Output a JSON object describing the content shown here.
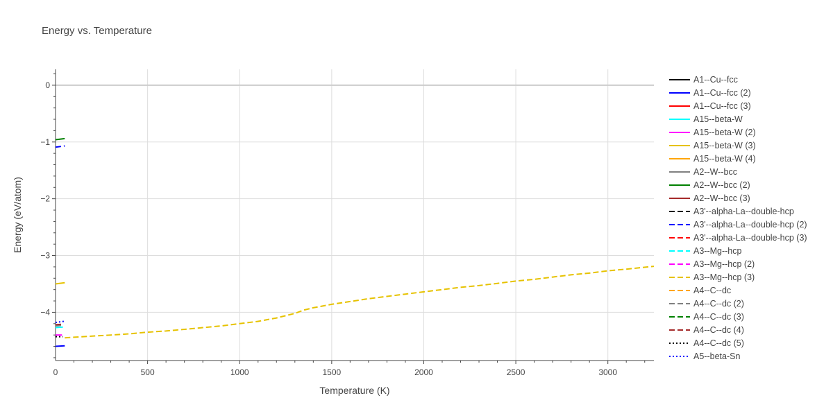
{
  "chart_data": {
    "type": "line",
    "title": "Energy vs. Temperature",
    "xlabel": "Temperature (K)",
    "ylabel": "Energy (eV/atom)",
    "xlim": [
      0,
      3250
    ],
    "ylim": [
      -4.85,
      0.28
    ],
    "xticks": [
      0,
      500,
      1000,
      1500,
      2000,
      2500,
      3000
    ],
    "yticks": [
      0,
      -1,
      -2,
      -3,
      -4
    ],
    "ytick_labels": [
      "0",
      "−1",
      "−2",
      "−3",
      "−4"
    ],
    "grid": true,
    "legend_position": "right",
    "series": [
      {
        "name": "A1--Cu--fcc",
        "color": "#000000",
        "dash": "solid",
        "x": [],
        "y": []
      },
      {
        "name": "A1--Cu--fcc (2)",
        "color": "#0000ff",
        "dash": "solid",
        "x": [
          0,
          50
        ],
        "y": [
          -4.6,
          -4.59
        ]
      },
      {
        "name": "A1--Cu--fcc (3)",
        "color": "#ff0000",
        "dash": "solid",
        "x": [],
        "y": []
      },
      {
        "name": "A15--beta-W",
        "color": "#00ffff",
        "dash": "solid",
        "x": [
          0,
          40
        ],
        "y": [
          -4.27,
          -4.26
        ]
      },
      {
        "name": "A15--beta-W (2)",
        "color": "#ff00ff",
        "dash": "solid",
        "x": [
          0,
          35
        ],
        "y": [
          -4.4,
          -4.4
        ]
      },
      {
        "name": "A15--beta-W (3)",
        "color": "#e6c200",
        "dash": "solid",
        "x": [
          0,
          50
        ],
        "y": [
          -3.5,
          -3.48
        ]
      },
      {
        "name": "A15--beta-W (4)",
        "color": "#ffa500",
        "dash": "solid",
        "x": [],
        "y": []
      },
      {
        "name": "A2--W--bcc",
        "color": "#808080",
        "dash": "solid",
        "x": [],
        "y": []
      },
      {
        "name": "A2--W--bcc (2)",
        "color": "#008000",
        "dash": "solid",
        "x": [
          0,
          50
        ],
        "y": [
          -0.96,
          -0.94
        ]
      },
      {
        "name": "A2--W--bcc (3)",
        "color": "#a52a2a",
        "dash": "solid",
        "x": [],
        "y": []
      },
      {
        "name": "A3'--alpha-La--double-hcp",
        "color": "#000000",
        "dash": "dash",
        "x": [],
        "y": []
      },
      {
        "name": "A3'--alpha-La--double-hcp (2)",
        "color": "#0000ff",
        "dash": "dash",
        "x": [
          0,
          50
        ],
        "y": [
          -1.09,
          -1.07
        ]
      },
      {
        "name": "A3'--alpha-La--double-hcp (3)",
        "color": "#ff0000",
        "dash": "dash",
        "x": [],
        "y": []
      },
      {
        "name": "A3--Mg--hcp",
        "color": "#00ffff",
        "dash": "dash",
        "x": [],
        "y": []
      },
      {
        "name": "A3--Mg--hcp (2)",
        "color": "#ff00ff",
        "dash": "dash",
        "x": [],
        "y": []
      },
      {
        "name": "A3--Mg--hcp (3)",
        "color": "#e6c200",
        "dash": "dash",
        "x": [
          50,
          100,
          200,
          300,
          400,
          500,
          600,
          700,
          800,
          900,
          1000,
          1100,
          1200,
          1300,
          1350,
          1400,
          1500,
          1600,
          1700,
          1800,
          1900,
          2000,
          2100,
          2200,
          2300,
          2400,
          2500,
          2600,
          2700,
          2800,
          2900,
          3000,
          3100,
          3250
        ],
        "y": [
          -4.45,
          -4.44,
          -4.42,
          -4.4,
          -4.38,
          -4.35,
          -4.33,
          -4.3,
          -4.27,
          -4.24,
          -4.2,
          -4.16,
          -4.1,
          -4.02,
          -3.96,
          -3.92,
          -3.86,
          -3.81,
          -3.76,
          -3.72,
          -3.68,
          -3.64,
          -3.6,
          -3.56,
          -3.53,
          -3.49,
          -3.45,
          -3.42,
          -3.38,
          -3.34,
          -3.31,
          -3.27,
          -3.24,
          -3.19
        ]
      },
      {
        "name": "A4--C--dc",
        "color": "#ffa500",
        "dash": "dash",
        "x": [],
        "y": []
      },
      {
        "name": "A4--C--dc (2)",
        "color": "#808080",
        "dash": "dash",
        "x": [
          0,
          40
        ],
        "y": [
          -4.24,
          -4.23
        ]
      },
      {
        "name": "A4--C--dc (3)",
        "color": "#008000",
        "dash": "dash",
        "x": [],
        "y": []
      },
      {
        "name": "A4--C--dc (4)",
        "color": "#a52a2a",
        "dash": "dash",
        "x": [
          0,
          40
        ],
        "y": [
          -4.22,
          -4.21
        ]
      },
      {
        "name": "A4--C--dc (5)",
        "color": "#000000",
        "dash": "dot",
        "x": [
          0,
          40
        ],
        "y": [
          -4.43,
          -4.43
        ]
      },
      {
        "name": "A5--beta-Sn",
        "color": "#0000ff",
        "dash": "dot",
        "x": [
          0,
          45
        ],
        "y": [
          -4.18,
          -4.16
        ]
      }
    ]
  }
}
